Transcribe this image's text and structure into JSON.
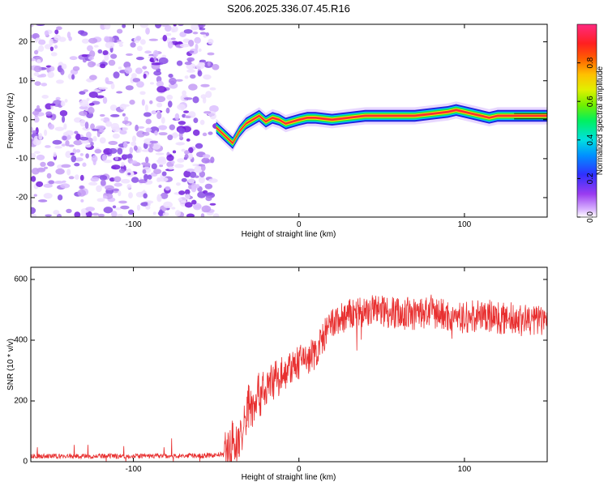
{
  "page_title": "S206.2025.336.07.45.R16",
  "chart_data": [
    {
      "type": "heatmap",
      "title": "S206.2025.336.07.45.R16",
      "xlabel": "Height of straight line (km)",
      "ylabel": "Frequency (Hz)",
      "xlim": [
        -162,
        150
      ],
      "ylim": [
        -25,
        24.5
      ],
      "xticks": [
        -100,
        0,
        100
      ],
      "yticks": [
        -20,
        -10,
        0,
        10,
        20
      ],
      "noise_region_x": [
        -162,
        -50
      ],
      "ridge": {
        "x": [
          -50,
          -45,
          -40,
          -36,
          -32,
          -28,
          -24,
          -20,
          -16,
          -12,
          -8,
          -4,
          0,
          5,
          10,
          20,
          30,
          40,
          50,
          60,
          70,
          80,
          90,
          95,
          100,
          105,
          110,
          115,
          120,
          130,
          140,
          150
        ],
        "freq": [
          -2,
          -4,
          -6,
          -3,
          -1,
          0,
          1,
          -0.5,
          0.5,
          0,
          -1,
          -0.5,
          0,
          0.5,
          0.5,
          0,
          0.5,
          1,
          1,
          1,
          1,
          1.5,
          2,
          2.5,
          2,
          1.5,
          1,
          0.5,
          1,
          1,
          1,
          1
        ]
      },
      "colorbar": {
        "label": "Normalized spectral amplitude",
        "ticks": [
          "0.0",
          "0.2",
          "0.4",
          "0.6",
          "0.8"
        ],
        "tick_values": [
          0.0,
          0.2,
          0.4,
          0.6,
          0.8
        ],
        "range": [
          0,
          1
        ]
      }
    },
    {
      "type": "line",
      "xlabel": "Height of straight line (km)",
      "ylabel": "SNR (10 * v/v)",
      "xlim": [
        -162,
        150
      ],
      "ylim": [
        0,
        640
      ],
      "xticks": [
        -100,
        0,
        100
      ],
      "yticks": [
        0,
        200,
        400,
        600
      ],
      "color": "#e83030",
      "series": [
        {
          "name": "SNR",
          "x": [
            -162,
            -120,
            -80,
            -55,
            -45,
            -42,
            -40,
            -38,
            -36,
            -34,
            -32,
            -30,
            -28,
            -26,
            -24,
            -22,
            -20,
            -18,
            -16,
            -14,
            -12,
            -10,
            -8,
            -6,
            -4,
            -2,
            0,
            2,
            4,
            6,
            8,
            10,
            12,
            14,
            16,
            18,
            20,
            25,
            30,
            35,
            40,
            50,
            60,
            70,
            80,
            90,
            100,
            110,
            120,
            130,
            140,
            150
          ],
          "y": [
            18,
            18,
            19,
            20,
            25,
            40,
            65,
            45,
            90,
            80,
            150,
            200,
            170,
            230,
            210,
            250,
            220,
            270,
            260,
            280,
            270,
            300,
            290,
            310,
            300,
            330,
            320,
            340,
            350,
            330,
            360,
            350,
            380,
            400,
            420,
            440,
            450,
            470,
            480,
            490,
            495,
            500,
            490,
            485,
            495,
            480,
            470,
            485,
            475,
            470,
            465,
            470
          ]
        }
      ]
    }
  ]
}
